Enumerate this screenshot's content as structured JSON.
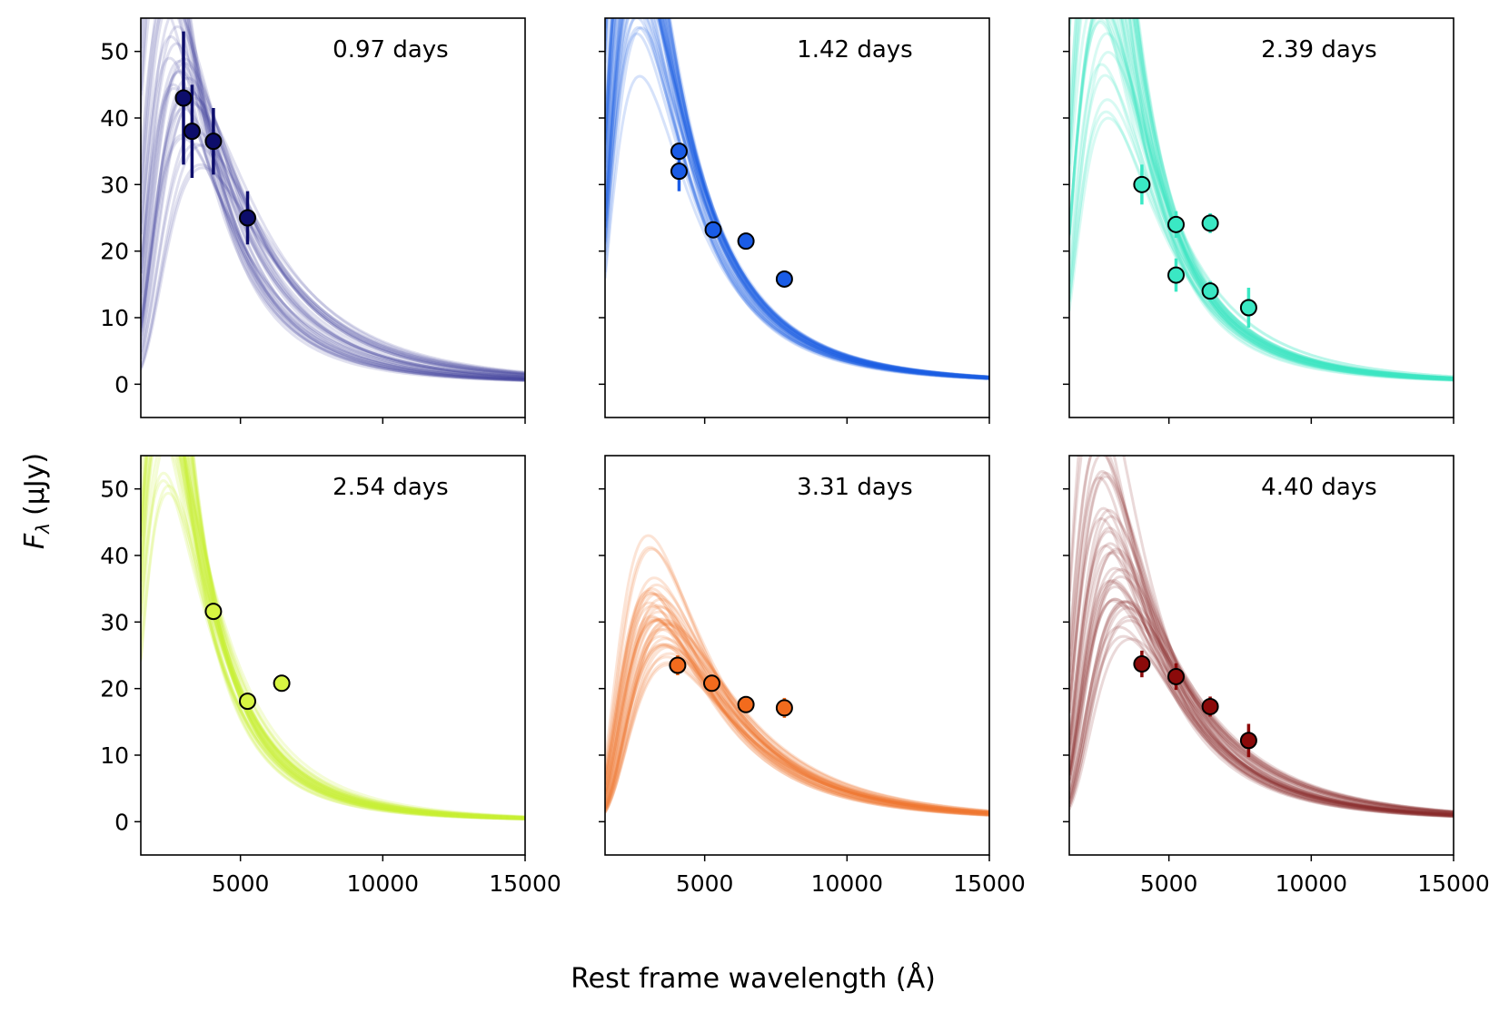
{
  "figure": {
    "xlabel": "Rest frame wavelength (Å)",
    "ylabel_main": "F",
    "ylabel_sub": "λ",
    "ylabel_unit": "(μJy)"
  },
  "chart_data": [
    {
      "type": "line",
      "panel_label": "0.97 days",
      "color": "#0d0d6b",
      "curve_color": "#3d3d9a",
      "curve_opacity": 0.16,
      "xlim": [
        1500,
        15000
      ],
      "ylim": [
        -5,
        55
      ],
      "xticks": [
        5000,
        10000,
        15000
      ],
      "yticks": [
        0,
        10,
        20,
        30,
        40,
        50
      ],
      "show_xtick_labels": false,
      "show_ytick_labels": true,
      "model_peak_range": [
        1900,
        3700
      ],
      "model_fit_point": [
        4000,
        36
      ],
      "points": [
        {
          "x": 3000,
          "y": 43,
          "yerr": 10
        },
        {
          "x": 3300,
          "y": 38,
          "yerr": 7
        },
        {
          "x": 4050,
          "y": 36.5,
          "yerr": 5
        },
        {
          "x": 5250,
          "y": 25,
          "yerr": 4
        }
      ]
    },
    {
      "type": "line",
      "panel_label": "1.42 days",
      "color": "#1a5ce6",
      "curve_color": "#1a5ce6",
      "curve_opacity": 0.18,
      "xlim": [
        1500,
        15000
      ],
      "ylim": [
        -5,
        55
      ],
      "xticks": [
        5000,
        10000,
        15000
      ],
      "yticks": [
        0,
        10,
        20,
        30,
        40,
        50
      ],
      "show_xtick_labels": false,
      "show_ytick_labels": false,
      "model_peak_range": [
        2200,
        2800
      ],
      "model_fit_point": [
        5300,
        23.3
      ],
      "points": [
        {
          "x": 4100,
          "y": 35,
          "yerr": 1
        },
        {
          "x": 4100,
          "y": 32,
          "yerr": 3
        },
        {
          "x": 5300,
          "y": 23.2,
          "yerr": 1
        },
        {
          "x": 6450,
          "y": 21.5,
          "yerr": 1
        },
        {
          "x": 7800,
          "y": 15.8,
          "yerr": 1
        }
      ]
    },
    {
      "type": "line",
      "panel_label": "2.39 days",
      "color": "#3ae8c4",
      "curve_color": "#3ae8c4",
      "curve_opacity": 0.2,
      "xlim": [
        1500,
        15000
      ],
      "ylim": [
        -5,
        55
      ],
      "xticks": [
        5000,
        10000,
        15000
      ],
      "yticks": [
        0,
        10,
        20,
        30,
        40,
        50
      ],
      "show_xtick_labels": false,
      "show_ytick_labels": false,
      "model_peak_range": [
        1700,
        2900
      ],
      "model_fit_point": [
        5500,
        20
      ],
      "points": [
        {
          "x": 4050,
          "y": 30,
          "yerr": 3
        },
        {
          "x": 5250,
          "y": 24,
          "yerr": 2
        },
        {
          "x": 6450,
          "y": 24.2,
          "yerr": 1.5
        },
        {
          "x": 5250,
          "y": 16.4,
          "yerr": 2.5
        },
        {
          "x": 6450,
          "y": 14,
          "yerr": 1.5
        },
        {
          "x": 7800,
          "y": 11.5,
          "yerr": 3
        }
      ]
    },
    {
      "type": "line",
      "panel_label": "2.54 days",
      "color": "#d7f542",
      "curve_color": "#c8f030",
      "curve_opacity": 0.2,
      "xlim": [
        1500,
        15000
      ],
      "ylim": [
        -5,
        55
      ],
      "xticks": [
        5000,
        10000,
        15000
      ],
      "yticks": [
        0,
        10,
        20,
        30,
        40,
        50
      ],
      "show_xtick_labels": true,
      "show_ytick_labels": true,
      "model_peak_range": [
        1600,
        2500
      ],
      "model_fit_point": [
        4050,
        31.5
      ],
      "points": [
        {
          "x": 4050,
          "y": 31.6,
          "yerr": 1
        },
        {
          "x": 5250,
          "y": 18.1,
          "yerr": 1
        },
        {
          "x": 6450,
          "y": 20.8,
          "yerr": 1
        }
      ]
    },
    {
      "type": "line",
      "panel_label": "3.31 days",
      "color": "#f26b1d",
      "curve_color": "#f07a30",
      "curve_opacity": 0.2,
      "xlim": [
        1500,
        15000
      ],
      "ylim": [
        -5,
        55
      ],
      "xticks": [
        5000,
        10000,
        15000
      ],
      "yticks": [
        0,
        10,
        20,
        30,
        40,
        50
      ],
      "show_xtick_labels": true,
      "show_ytick_labels": false,
      "model_peak_range": [
        3000,
        3800
      ],
      "model_fit_point": [
        5250,
        21
      ],
      "points": [
        {
          "x": 4050,
          "y": 23.5,
          "yerr": 1.5
        },
        {
          "x": 5250,
          "y": 20.8,
          "yerr": 1
        },
        {
          "x": 6450,
          "y": 17.6,
          "yerr": 1
        },
        {
          "x": 7800,
          "y": 17.1,
          "yerr": 1.5
        }
      ]
    },
    {
      "type": "line",
      "panel_label": "4.40 days",
      "color": "#8b0a0a",
      "curve_color": "#8b2a2a",
      "curve_opacity": 0.18,
      "xlim": [
        1500,
        15000
      ],
      "ylim": [
        -5,
        55
      ],
      "xticks": [
        5000,
        10000,
        15000
      ],
      "yticks": [
        0,
        10,
        20,
        30,
        40,
        50
      ],
      "show_xtick_labels": true,
      "show_ytick_labels": false,
      "model_peak_range": [
        2400,
        3700
      ],
      "model_fit_point": [
        5250,
        21.5
      ],
      "points": [
        {
          "x": 4050,
          "y": 23.7,
          "yerr": 2
        },
        {
          "x": 5250,
          "y": 21.8,
          "yerr": 2
        },
        {
          "x": 6450,
          "y": 17.3,
          "yerr": 1.5
        },
        {
          "x": 7800,
          "y": 12.2,
          "yerr": 2.5
        }
      ]
    }
  ]
}
